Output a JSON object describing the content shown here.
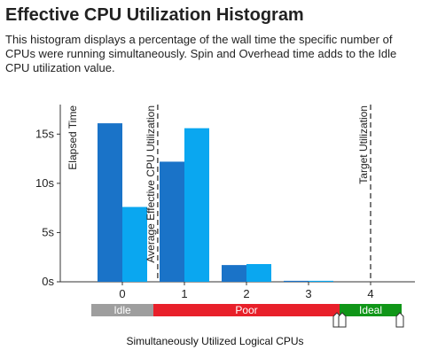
{
  "title": "Effective CPU Utilization Histogram",
  "description": "This histogram displays a percentage of the wall time the specific number of CPUs were running simultaneously. Spin and Overhead time adds to the Idle CPU utilization value.",
  "chart_data": {
    "type": "bar",
    "categories": [
      "0",
      "1",
      "2",
      "3",
      "4"
    ],
    "series": [
      {
        "values": [
          16.1,
          12.2,
          1.7,
          0.1,
          0
        ],
        "color": "#1a73c8"
      },
      {
        "values": [
          7.6,
          15.6,
          1.8,
          0.1,
          0
        ],
        "color": "#0aa7f0"
      }
    ],
    "ylabel": "Elapsed Time",
    "xlabel": "Simultaneously Utilized Logical CPUs",
    "ylim": [
      0,
      18
    ],
    "yticks": [
      0,
      5,
      10,
      15
    ],
    "ytick_labels": [
      "0s",
      "5s",
      "10s",
      "15s"
    ],
    "annotations": [
      {
        "label": "Average Effective CPU Utilization",
        "x": 0.57
      },
      {
        "label": "Target Utilization",
        "x": 4
      }
    ],
    "utilization_bands": [
      {
        "label": "Idle",
        "from": -0.5,
        "to": 0.5,
        "color": "#9e9e9e"
      },
      {
        "label": "Poor",
        "from": 0.5,
        "to": 3.5,
        "color": "#e8202a"
      },
      {
        "label": "Ideal",
        "from": 3.5,
        "to": 4.5,
        "color": "#109618"
      }
    ],
    "grid": false
  }
}
